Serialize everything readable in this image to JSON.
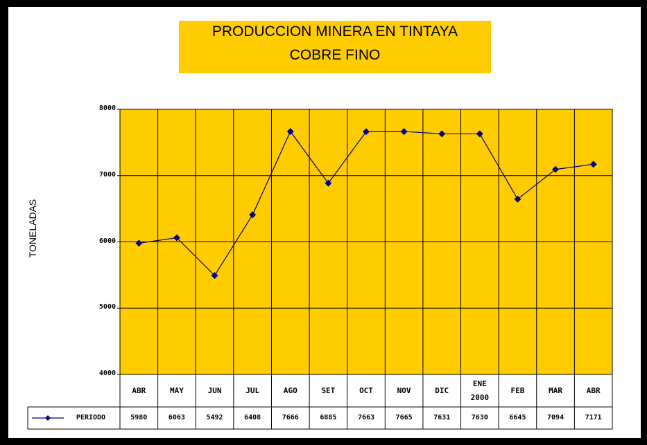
{
  "chart_data": {
    "type": "line",
    "title": "PRODUCCION MINERA EN TINTAYA",
    "subtitle": "COBRE FINO",
    "y_label": "TONELADAS",
    "categories": [
      "ABR",
      "MAY",
      "JUN",
      "JUL",
      "AGO",
      "SET",
      "OCT",
      "NOV",
      "DIC",
      "ENE 2000",
      "FEB",
      "MAR",
      "ABR"
    ],
    "series": [
      {
        "name": "PERIODO",
        "color": "#000080",
        "values": [
          5980,
          6063,
          5492,
          6408,
          7666,
          6885,
          7663,
          7665,
          7631,
          7630,
          6645,
          7094,
          7171
        ]
      }
    ],
    "ylim": [
      4000,
      8000
    ],
    "yticks": [
      4000,
      5000,
      6000,
      7000,
      8000
    ],
    "grid": true,
    "plot_background": "#ffcc00"
  }
}
